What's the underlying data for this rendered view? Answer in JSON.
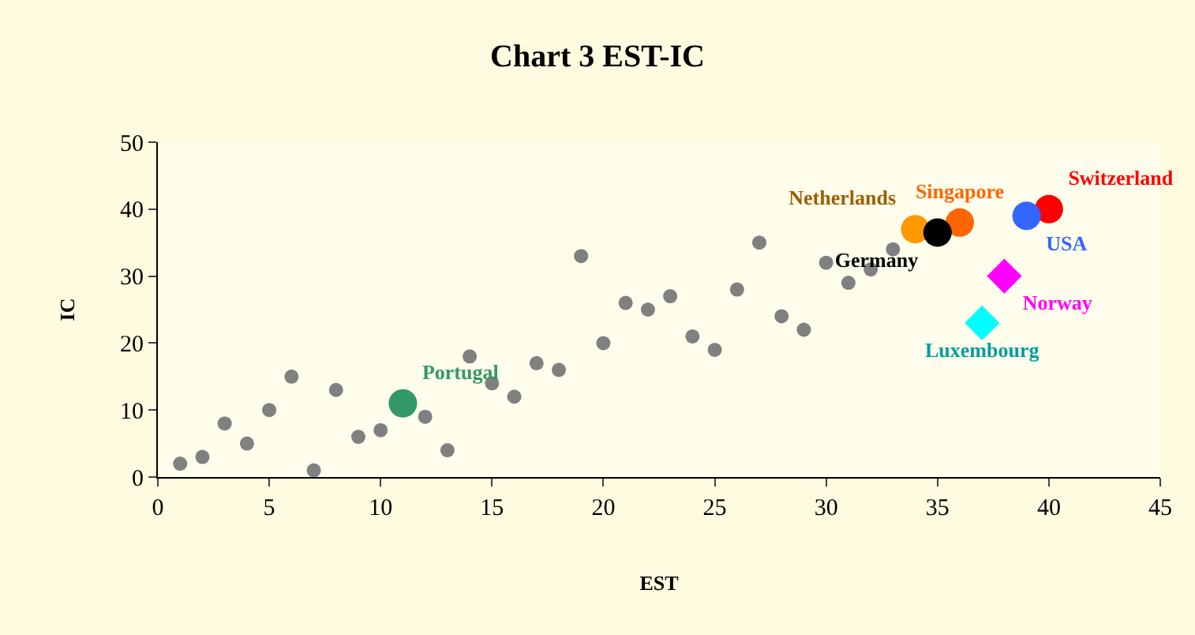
{
  "chart_data": {
    "type": "scatter",
    "title": "Chart 3 EST-IC",
    "xlabel": "EST",
    "ylabel": "IC",
    "xlim": [
      0,
      45
    ],
    "xticks": [
      0,
      5,
      10,
      15,
      20,
      25,
      30,
      35,
      40,
      45
    ],
    "ylim": [
      0,
      50
    ],
    "yticks": [
      0,
      10,
      20,
      30,
      40,
      50
    ],
    "grid": false,
    "legend": false,
    "marker": "circle",
    "series": [
      {
        "color": "#808080",
        "x": [
          1,
          2,
          3,
          4,
          5,
          6,
          7,
          8,
          9,
          10,
          12,
          13,
          14,
          15,
          16,
          17,
          18,
          19,
          20,
          21,
          22,
          23,
          24,
          25,
          26,
          27,
          28,
          29,
          30,
          31,
          32,
          33
        ],
        "values": [
          2,
          3,
          8,
          5,
          10,
          15,
          1,
          13,
          6,
          7,
          9,
          4,
          18,
          14,
          12,
          17,
          16,
          33,
          20,
          26,
          25,
          27,
          21,
          19,
          28,
          35,
          24,
          22,
          32,
          29,
          31,
          34
        ]
      },
      {
        "name": "Portugal",
        "color": "#339966",
        "x": [
          11
        ],
        "values": [
          11
        ]
      },
      {
        "name": "Netherlands",
        "color": "#ff9900",
        "x": [
          34
        ],
        "values": [
          37
        ]
      },
      {
        "name": "Singapore",
        "color": "#ff6600",
        "x": [
          36
        ],
        "values": [
          38
        ]
      },
      {
        "name": "Germany",
        "color": "#000000",
        "x": [
          35
        ],
        "values": [
          36.5
        ]
      },
      {
        "name": "Switzerland",
        "color": "#ff0000",
        "x": [
          40
        ],
        "values": [
          40
        ]
      },
      {
        "name": "USA",
        "color": "#3366ff",
        "x": [
          39
        ],
        "values": [
          39
        ]
      },
      {
        "name": "Norway",
        "color": "#ff00ff",
        "x": [
          38
        ],
        "values": [
          30
        ],
        "marker": "diamond"
      },
      {
        "name": "Luxembourg",
        "color": "#00ffff",
        "x": [
          37
        ],
        "values": [
          23
        ],
        "marker": "diamond"
      }
    ]
  }
}
